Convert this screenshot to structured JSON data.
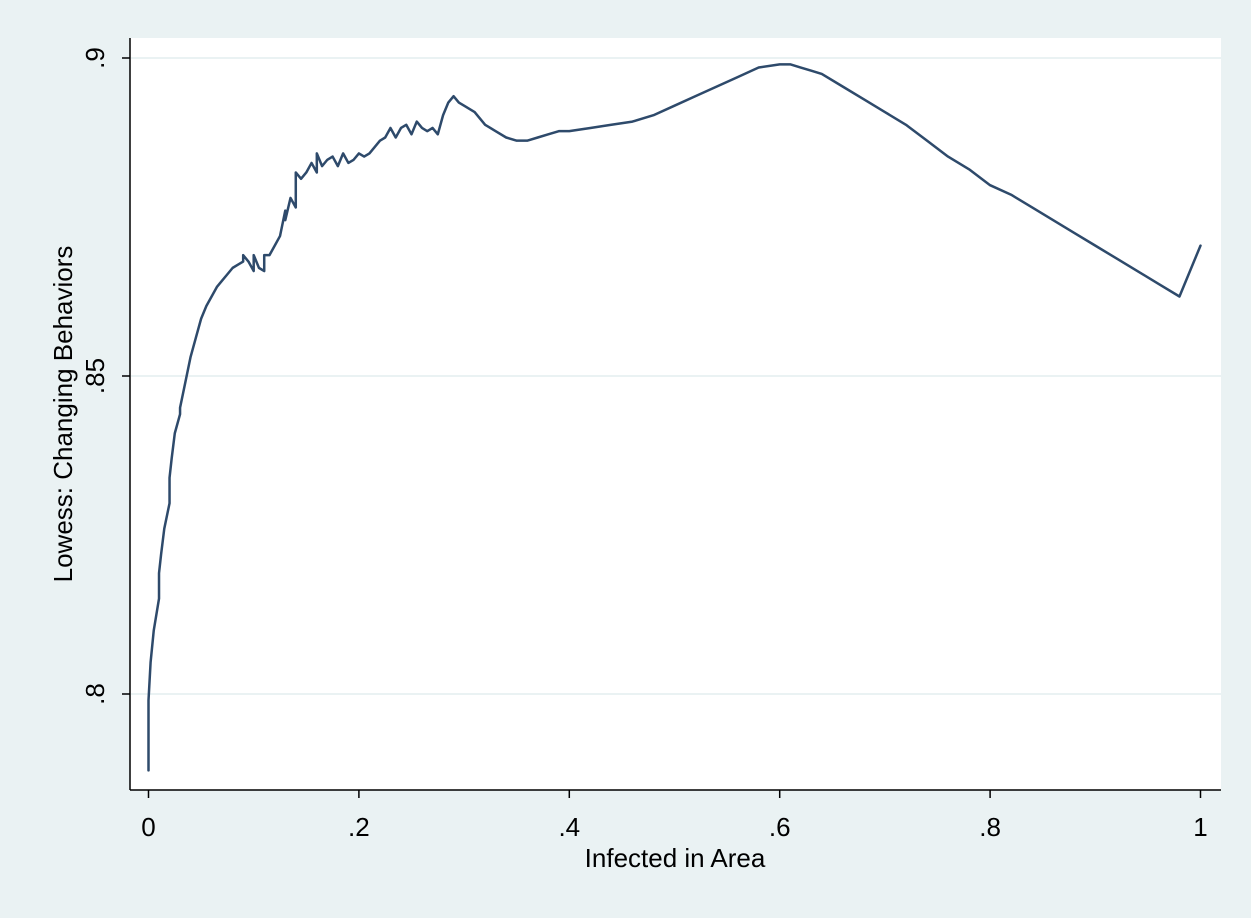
{
  "chart_data": {
    "type": "line",
    "title": "",
    "xlabel": "Infected in Area",
    "ylabel": "Lowess: Changing Behaviors",
    "xlim": [
      0,
      1
    ],
    "ylim": [
      0.79,
      0.9
    ],
    "xticks": [
      {
        "value": 0,
        "label": "0"
      },
      {
        "value": 0.2,
        "label": ".2"
      },
      {
        "value": 0.4,
        "label": ".4"
      },
      {
        "value": 0.6,
        "label": ".6"
      },
      {
        "value": 0.8,
        "label": ".8"
      },
      {
        "value": 1,
        "label": "1"
      }
    ],
    "yticks": [
      {
        "value": 0.8,
        "label": ".8"
      },
      {
        "value": 0.85,
        "label": ".85"
      },
      {
        "value": 0.9,
        "label": ".9"
      }
    ],
    "grid": true,
    "colors": {
      "line": "#2e4a6b",
      "background": "#eaf2f3",
      "plot": "#ffffff",
      "grid": "#eaf2f3"
    },
    "series": [
      {
        "x": [
          0,
          0,
          0.002,
          0.005,
          0.01,
          0.01,
          0.012,
          0.015,
          0.02,
          0.02,
          0.022,
          0.025,
          0.03,
          0.03,
          0.035,
          0.04,
          0.045,
          0.05,
          0.055,
          0.06,
          0.065,
          0.07,
          0.075,
          0.08,
          0.085,
          0.09,
          0.09,
          0.095,
          0.1,
          0.1,
          0.105,
          0.11,
          0.11,
          0.115,
          0.12,
          0.125,
          0.13,
          0.13,
          0.135,
          0.14,
          0.14,
          0.145,
          0.15,
          0.155,
          0.16,
          0.16,
          0.165,
          0.17,
          0.175,
          0.18,
          0.185,
          0.19,
          0.195,
          0.2,
          0.205,
          0.21,
          0.215,
          0.22,
          0.225,
          0.23,
          0.235,
          0.24,
          0.245,
          0.25,
          0.255,
          0.26,
          0.265,
          0.27,
          0.275,
          0.28,
          0.285,
          0.29,
          0.295,
          0.3,
          0.31,
          0.32,
          0.33,
          0.34,
          0.35,
          0.36,
          0.37,
          0.38,
          0.39,
          0.4,
          0.42,
          0.44,
          0.46,
          0.48,
          0.5,
          0.52,
          0.54,
          0.56,
          0.58,
          0.6,
          0.61,
          0.62,
          0.63,
          0.64,
          0.66,
          0.68,
          0.7,
          0.72,
          0.74,
          0.76,
          0.78,
          0.8,
          0.82,
          0.84,
          0.86,
          0.88,
          0.9,
          0.92,
          0.94,
          0.96,
          0.98,
          1.0
        ],
        "y": [
          0.788,
          0.799,
          0.805,
          0.81,
          0.815,
          0.819,
          0.822,
          0.826,
          0.83,
          0.834,
          0.837,
          0.841,
          0.844,
          0.845,
          0.849,
          0.853,
          0.856,
          0.859,
          0.861,
          0.8625,
          0.864,
          0.865,
          0.866,
          0.867,
          0.8675,
          0.868,
          0.869,
          0.868,
          0.8665,
          0.869,
          0.867,
          0.8665,
          0.869,
          0.869,
          0.8705,
          0.872,
          0.876,
          0.8745,
          0.878,
          0.8765,
          0.882,
          0.881,
          0.882,
          0.8835,
          0.882,
          0.885,
          0.883,
          0.884,
          0.8845,
          0.883,
          0.885,
          0.8835,
          0.884,
          0.885,
          0.8845,
          0.885,
          0.886,
          0.887,
          0.8875,
          0.889,
          0.8875,
          0.889,
          0.8895,
          0.888,
          0.89,
          0.889,
          0.8885,
          0.889,
          0.888,
          0.891,
          0.893,
          0.894,
          0.893,
          0.8925,
          0.8915,
          0.8895,
          0.8885,
          0.8875,
          0.887,
          0.887,
          0.8875,
          0.888,
          0.8885,
          0.8885,
          0.889,
          0.8895,
          0.89,
          0.891,
          0.8925,
          0.894,
          0.8955,
          0.897,
          0.8985,
          0.899,
          0.899,
          0.8985,
          0.898,
          0.8975,
          0.8955,
          0.8935,
          0.8915,
          0.8895,
          0.887,
          0.8845,
          0.8825,
          0.88,
          0.8785,
          0.8765,
          0.8745,
          0.8725,
          0.8705,
          0.8685,
          0.8665,
          0.8645,
          0.8625,
          0.8705
        ]
      }
    ]
  }
}
